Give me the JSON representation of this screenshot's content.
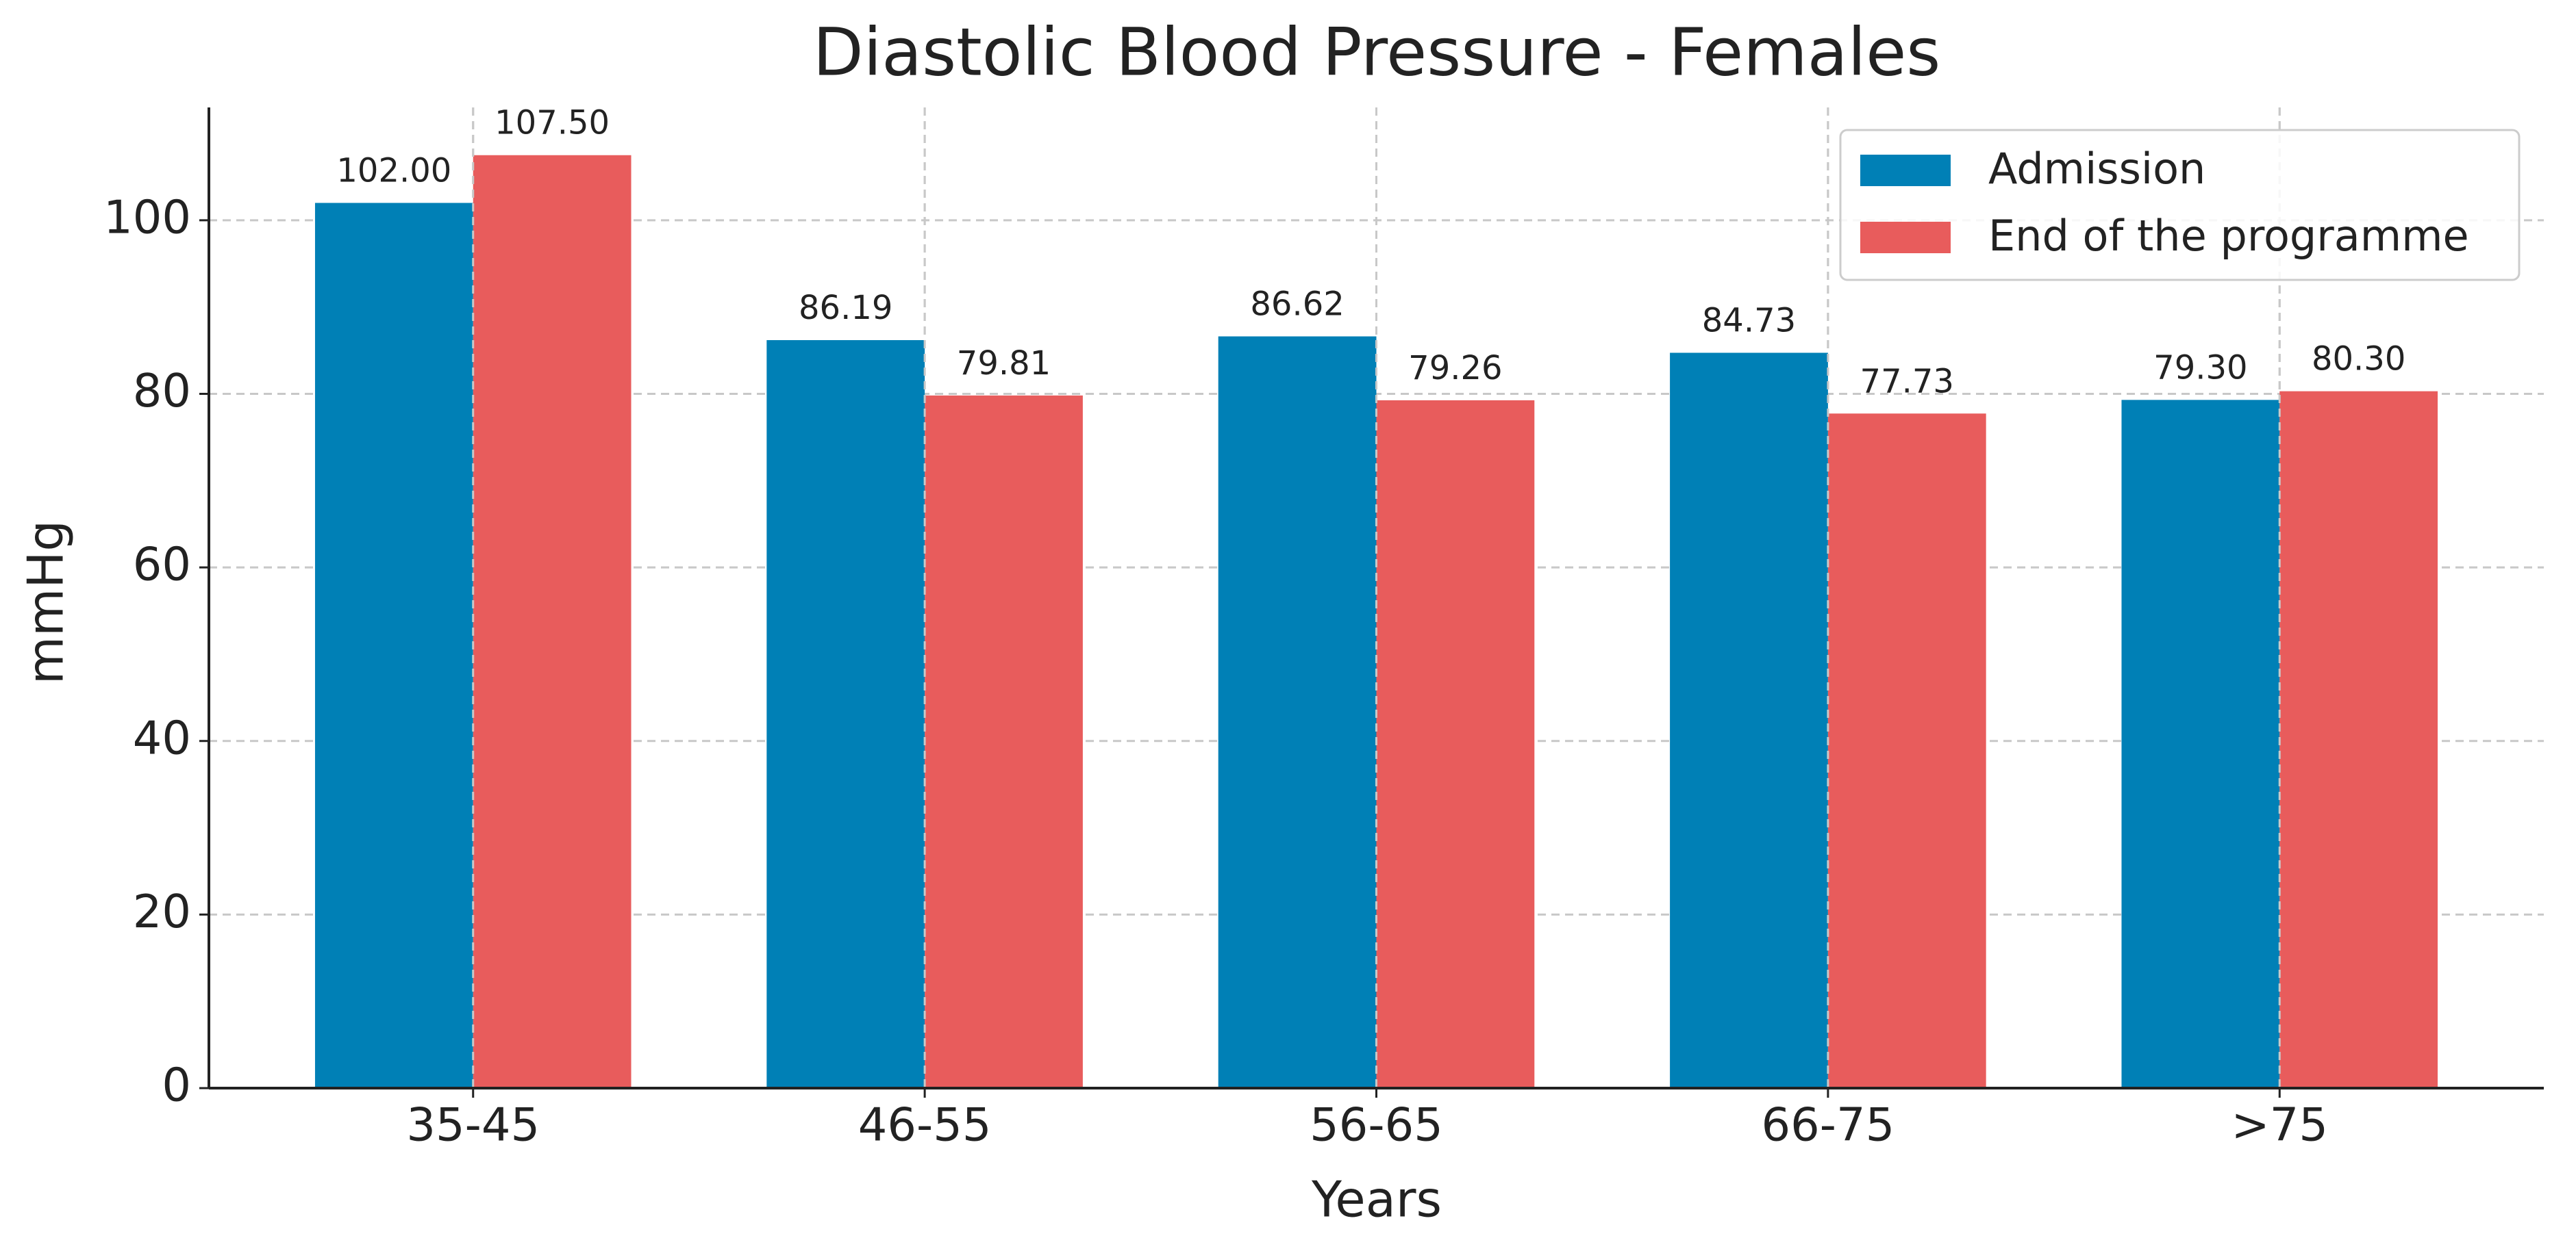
{
  "chart_data": {
    "type": "bar",
    "title": "Diastolic Blood Pressure - Females",
    "x_label": "Years",
    "y_label": "mmHg",
    "categories": [
      "35-45",
      "46-55",
      "56-65",
      "66-75",
      ">75"
    ],
    "series": [
      {
        "name": "Admission",
        "color": "#0080b6",
        "values": [
          102.0,
          86.19,
          86.62,
          84.73,
          79.3
        ],
        "value_labels": [
          "102.00",
          "86.19",
          "86.62",
          "84.73",
          "79.30"
        ]
      },
      {
        "name": "End of the programme",
        "color": "#e85c5c",
        "values": [
          107.5,
          79.81,
          79.26,
          77.73,
          80.3
        ],
        "value_labels": [
          "107.50",
          "79.81",
          "79.26",
          "77.73",
          "80.30"
        ]
      }
    ],
    "ylim": [
      0,
      113
    ],
    "yticks": [
      0,
      20,
      40,
      60,
      80,
      100
    ],
    "grid": true,
    "legend": "upper right"
  }
}
